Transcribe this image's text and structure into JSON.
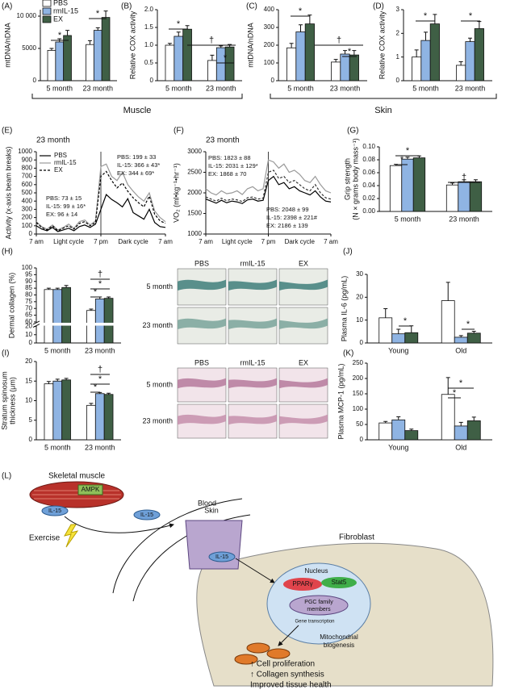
{
  "chart_data": [
    {
      "type": "bar",
      "panel": "(A)",
      "ylabel": [
        "mtDNA/nDNA"
      ],
      "categories": [
        "5 month",
        "23 month"
      ],
      "legend": "upper left",
      "series": [
        {
          "name": "PBS",
          "color": "#ffffff",
          "values": [
            4700,
            5600
          ],
          "errors": [
            300,
            600
          ]
        },
        {
          "name": "rmIL-15",
          "color": "#8fb4e3",
          "values": [
            6000,
            7800
          ],
          "errors": [
            500,
            400
          ]
        },
        {
          "name": "EX",
          "color": "#3f5f45",
          "values": [
            7000,
            9800
          ],
          "errors": [
            800,
            1000
          ]
        }
      ],
      "ylim": [
        0,
        11000
      ],
      "yticks": [
        0,
        5000,
        {
          "value": 10000,
          "label": "10 000"
        }
      ],
      "annotations": [
        "*",
        "*"
      ]
    },
    {
      "type": "bar",
      "panel": "(B)",
      "ylabel": [
        "Relative COX activity"
      ],
      "categories": [
        "5 month",
        "23 month"
      ],
      "series": [
        {
          "color": "#ffffff",
          "values": [
            1.0,
            0.57
          ],
          "errors": [
            0.05,
            0.15
          ]
        },
        {
          "color": "#8fb4e3",
          "values": [
            1.25,
            0.93
          ],
          "errors": [
            0.12,
            0.05
          ]
        },
        {
          "color": "#3f5f45",
          "values": [
            1.45,
            0.95
          ],
          "errors": [
            0.1,
            0.07
          ]
        }
      ],
      "ylim": [
        0,
        2.0
      ],
      "yticks": [
        0,
        0.5,
        {
          "value": 1,
          "label": "1.0"
        },
        1.5,
        {
          "value": 2,
          "label": "2.0"
        }
      ],
      "annotations": [
        "*",
        "†",
        "*"
      ]
    },
    {
      "type": "bar",
      "panel": "(C)",
      "ylabel": [
        "mtDNA/nDNA"
      ],
      "categories": [
        "5 month",
        "23 month"
      ],
      "series": [
        {
          "color": "#ffffff",
          "values": [
            185,
            105
          ],
          "errors": [
            25,
            15
          ]
        },
        {
          "color": "#8fb4e3",
          "values": [
            275,
            150
          ],
          "errors": [
            40,
            20
          ]
        },
        {
          "color": "#3f5f45",
          "values": [
            320,
            145
          ],
          "errors": [
            50,
            25
          ]
        }
      ],
      "ylim": [
        0,
        400
      ],
      "yticks": [
        0,
        100,
        200,
        300,
        400
      ],
      "annotations": [
        "*",
        "†",
        "*"
      ]
    },
    {
      "type": "bar",
      "panel": "(D)",
      "ylabel": [
        "Relative COX activity"
      ],
      "categories": [
        "5 month",
        "23 month"
      ],
      "series": [
        {
          "color": "#ffffff",
          "values": [
            1.0,
            0.65
          ],
          "errors": [
            0.3,
            0.15
          ]
        },
        {
          "color": "#8fb4e3",
          "values": [
            1.7,
            1.65
          ],
          "errors": [
            0.35,
            0.15
          ]
        },
        {
          "color": "#3f5f45",
          "values": [
            2.4,
            2.2
          ],
          "errors": [
            0.4,
            0.3
          ]
        }
      ],
      "ylim": [
        0,
        3
      ],
      "yticks": [
        0,
        1,
        2,
        3
      ],
      "annotations": [
        "*",
        "*"
      ]
    },
    {
      "type": "line",
      "panel": "(E)",
      "subtitle": "23 month",
      "ylabel": [
        "Activity (x-axis beam breaks)"
      ],
      "legend": "upper left",
      "x": [
        0,
        1,
        2,
        3,
        4,
        5,
        6,
        7,
        8,
        9,
        10,
        11,
        12,
        13,
        14,
        15,
        16,
        17,
        18,
        19,
        20,
        21,
        22,
        23,
        24
      ],
      "series": [
        {
          "name": "PBS",
          "color": "#000000",
          "values": [
            100,
            60,
            40,
            80,
            30,
            50,
            70,
            40,
            90,
            110,
            80,
            120,
            300,
            480,
            420,
            380,
            330,
            430,
            260,
            220,
            180,
            300,
            140,
            90,
            80
          ]
        },
        {
          "name": "rmIL-15",
          "color": "#999999",
          "values": [
            150,
            90,
            60,
            110,
            50,
            80,
            120,
            70,
            150,
            170,
            110,
            160,
            820,
            850,
            700,
            650,
            750,
            600,
            520,
            450,
            400,
            500,
            280,
            200,
            150
          ]
        },
        {
          "name": "EX",
          "color": "#000000",
          "dash": true,
          "values": [
            140,
            80,
            50,
            100,
            40,
            70,
            100,
            60,
            130,
            150,
            100,
            140,
            700,
            760,
            650,
            560,
            620,
            520,
            440,
            380,
            330,
            460,
            240,
            160,
            130
          ]
        }
      ],
      "xlim": [
        0,
        24
      ],
      "xticks": [
        {
          "value": 0,
          "label": "7 am"
        },
        {
          "value": 12,
          "label": "7 pm"
        },
        {
          "value": 24,
          "label": "7 am"
        }
      ],
      "x_sublabels": [
        "Light cycle",
        "Dark cycle"
      ],
      "ylim": [
        0,
        1000
      ],
      "yticks": [
        0,
        100,
        200,
        300,
        400,
        500,
        600,
        700,
        800,
        900,
        1000
      ],
      "annotations": [
        "PBS: 73 ± 15",
        "IL-15: 99 ± 16*",
        "EX: 96 ± 14",
        "PBS: 199 ± 33",
        "IL-15: 366 ± 43*",
        "EX: 344 ± 69*"
      ]
    },
    {
      "type": "line",
      "panel": "(F)",
      "subtitle": "23 month",
      "ylabel": [
        "VO₂ (ml•kg⁻¹•hr⁻¹)"
      ],
      "x": [
        0,
        1,
        2,
        3,
        4,
        5,
        6,
        7,
        8,
        9,
        10,
        11,
        12,
        13,
        14,
        15,
        16,
        17,
        18,
        19,
        20,
        21,
        22,
        23,
        24
      ],
      "series": [
        {
          "color": "#000000",
          "values": [
            1850,
            1800,
            1750,
            1820,
            1760,
            1800,
            1780,
            1740,
            1830,
            1850,
            1800,
            1820,
            2300,
            2400,
            2200,
            2250,
            2100,
            2150,
            2050,
            2000,
            1950,
            2050,
            1900,
            1800,
            1780
          ]
        },
        {
          "color": "#999999",
          "values": [
            2100,
            2000,
            1950,
            2050,
            1980,
            2000,
            2050,
            1960,
            2100,
            2150,
            2050,
            2100,
            2800,
            2750,
            2600,
            2700,
            2500,
            2550,
            2450,
            2300,
            2250,
            2400,
            2200,
            2050,
            2000
          ]
        },
        {
          "color": "#333333",
          "dash": true,
          "values": [
            1900,
            1850,
            1800,
            1870,
            1810,
            1850,
            1830,
            1790,
            1880,
            1900,
            1850,
            1870,
            2500,
            2550,
            2350,
            2400,
            2250,
            2300,
            2200,
            2100,
            2050,
            2200,
            2000,
            1880,
            1850
          ]
        }
      ],
      "xlim": [
        0,
        24
      ],
      "xticks": [
        {
          "value": 0,
          "label": "7 am"
        },
        {
          "value": 12,
          "label": "7 pm"
        },
        {
          "value": 24,
          "label": "7 am"
        }
      ],
      "x_sublabels": [
        "Light cycle",
        "Dark cycle"
      ],
      "ylim": [
        1000,
        3000
      ],
      "yticks": [
        1000,
        1500,
        2000,
        2500,
        3000
      ],
      "annotations": [
        "PBS: 1823 ± 88",
        "IL-15: 2031 ± 129*",
        "EX: 1868 ± 70",
        "PBS: 2048 ± 99",
        "IL-15: 2398 ± 221#",
        "EX: 2186 ± 139"
      ]
    },
    {
      "type": "bar",
      "panel": "(G)",
      "ylabel": [
        "Grip strength",
        "(N × grams body mass⁻¹)"
      ],
      "categories": [
        "5 month",
        "23 month"
      ],
      "series": [
        {
          "color": "#ffffff",
          "values": [
            0.071,
            0.041
          ],
          "errors": [
            0.002,
            0.003
          ]
        },
        {
          "color": "#8fb4e3",
          "values": [
            0.081,
            0.046
          ],
          "errors": [
            0.003,
            0.003
          ]
        },
        {
          "color": "#3f5f45",
          "values": [
            0.083,
            0.046
          ],
          "errors": [
            0.003,
            0.003
          ]
        }
      ],
      "ylim": [
        0,
        0.1
      ],
      "yticks": [
        {
          "value": 0,
          "label": "0.00"
        },
        0.02,
        0.04,
        0.06,
        0.08,
        {
          "value": 0.1,
          "label": "0.10"
        }
      ],
      "annotations": [
        "*",
        "*",
        "†"
      ]
    },
    {
      "type": "bar",
      "panel": "(H)",
      "ylabel": [
        "Dermal collagen (%)"
      ],
      "categories": [
        "5 month",
        "23 month"
      ],
      "axis_break": [
        20,
        60
      ],
      "series": [
        {
          "color": "#ffffff",
          "values": [
            84,
            68.5
          ],
          "errors": [
            1,
            1
          ]
        },
        {
          "color": "#8fb4e3",
          "values": [
            84,
            77
          ],
          "errors": [
            1,
            1.5
          ]
        },
        {
          "color": "#3f5f45",
          "values": [
            85.5,
            77.5
          ],
          "errors": [
            1.5,
            1
          ]
        }
      ],
      "ylim": [
        0,
        100
      ],
      "yticks": [
        0,
        10,
        20,
        60,
        65,
        70,
        75,
        80,
        85,
        90,
        95,
        100
      ],
      "annotations": [
        "†",
        "*",
        "*"
      ]
    },
    {
      "type": "bar",
      "panel": "(I)",
      "ylabel": [
        "Stratum spinosum",
        "thickness (μm)"
      ],
      "categories": [
        "5 month",
        "23 month"
      ],
      "series": [
        {
          "color": "#ffffff",
          "values": [
            14.3,
            8.8
          ],
          "errors": [
            0.6,
            0.5
          ]
        },
        {
          "color": "#8fb4e3",
          "values": [
            15.0,
            11.8
          ],
          "errors": [
            0.5,
            0.3
          ]
        },
        {
          "color": "#3f5f45",
          "values": [
            15.3,
            11.6
          ],
          "errors": [
            0.4,
            0.3
          ]
        }
      ],
      "ylim": [
        0,
        20
      ],
      "yticks": [
        0,
        5,
        10,
        15,
        20
      ],
      "annotations": [
        "†",
        "*",
        "*"
      ]
    },
    {
      "type": "bar",
      "panel": "(J)",
      "ylabel": [
        "Plasma IL-6 (pg/mL)"
      ],
      "categories": [
        "Young",
        "Old"
      ],
      "series": [
        {
          "color": "#ffffff",
          "values": [
            11,
            18.5
          ],
          "errors": [
            4,
            8
          ]
        },
        {
          "color": "#8fb4e3",
          "values": [
            4,
            2.5
          ],
          "errors": [
            2,
            0.7
          ]
        },
        {
          "color": "#3f5f45",
          "values": [
            4.5,
            4.3
          ],
          "errors": [
            3,
            0.8
          ]
        }
      ],
      "ylim": [
        0,
        30
      ],
      "yticks": [
        0,
        10,
        20,
        30
      ],
      "annotations": [
        "*",
        "*"
      ]
    },
    {
      "type": "bar",
      "panel": "(K)",
      "ylabel": [
        "Plasma MCP-1 (pg/mL)"
      ],
      "categories": [
        "Young",
        "Old"
      ],
      "series": [
        {
          "color": "#ffffff",
          "values": [
            55,
            148
          ],
          "errors": [
            5,
            55
          ]
        },
        {
          "color": "#8fb4e3",
          "values": [
            65,
            45
          ],
          "errors": [
            10,
            12
          ]
        },
        {
          "color": "#3f5f45",
          "values": [
            30,
            62
          ],
          "errors": [
            5,
            12
          ]
        }
      ],
      "ylim": [
        0,
        250
      ],
      "yticks": [
        0,
        50,
        100,
        150,
        200,
        250
      ],
      "annotations": [
        "*",
        "*"
      ]
    }
  ],
  "groups": [
    "Muscle",
    "Skin"
  ],
  "histology_h": {
    "columns": [
      "PBS",
      "rmIL-15",
      "EX"
    ],
    "rows": [
      "5 month",
      "23 month"
    ]
  },
  "histology_i": {
    "columns": [
      "PBS",
      "rmIL-15",
      "EX"
    ],
    "rows": [
      "5 month",
      "23 month"
    ]
  },
  "diagram": {
    "panel": "(L)",
    "muscle": "Skeletal muscle",
    "ampk": "AMPK",
    "il15": [
      "IL-15",
      "IL-15",
      "IL-15"
    ],
    "exercise": "Exercise",
    "blood": "Blood",
    "skin": "Skin",
    "fibroblast": "Fibroblast",
    "nucleus": "Nucleus",
    "ppar": "PPARγ",
    "stat5": "Stat5",
    "pgc": [
      "PGC family",
      "members"
    ],
    "gene": "Gene transcription",
    "mito": [
      "Mitochondrial",
      "biogenesis"
    ],
    "outcomes": [
      "↑ Cell proliferation",
      "↑ Collagen synthesis",
      "Improved tissue health"
    ]
  }
}
